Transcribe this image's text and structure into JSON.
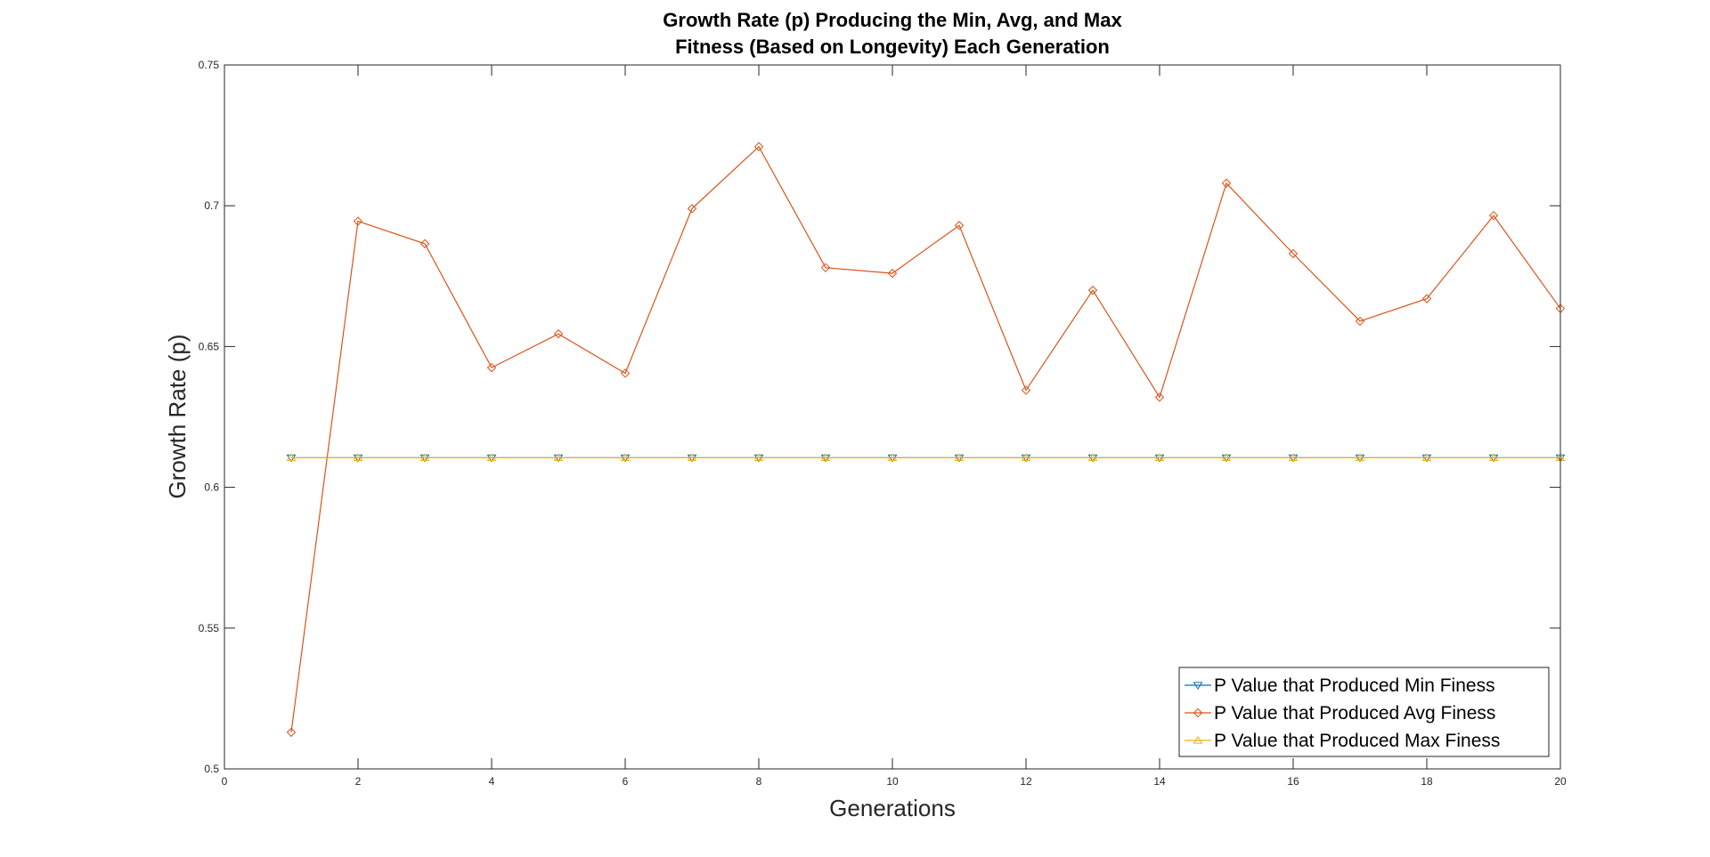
{
  "chart_data": {
    "type": "line",
    "title_lines": [
      "Growth Rate (p) Producing the Min, Avg, and Max",
      "Fitness (Based on Longevity) Each Generation"
    ],
    "xlabel": "Generations",
    "ylabel": "Growth Rate (p)",
    "xlim": [
      0,
      20
    ],
    "ylim": [
      0.5,
      0.75
    ],
    "x_ticks": [
      0,
      2,
      4,
      6,
      8,
      10,
      12,
      14,
      16,
      18,
      20
    ],
    "y_ticks": [
      0.5,
      0.55,
      0.6,
      0.65,
      0.7,
      0.75
    ],
    "x_tick_labels": [
      "0",
      "2",
      "4",
      "6",
      "8",
      "10",
      "12",
      "14",
      "16",
      "18",
      "20"
    ],
    "y_tick_labels": [
      "0.5",
      "0.55",
      "0.6",
      "0.65",
      "0.7",
      "0.75"
    ],
    "grid": false,
    "legend_position": "bottom-right",
    "x": [
      1,
      2,
      3,
      4,
      5,
      6,
      7,
      8,
      9,
      10,
      11,
      12,
      13,
      14,
      15,
      16,
      17,
      18,
      19,
      20
    ],
    "series": [
      {
        "name": "P Value that Produced Min Finess",
        "color": "#0072BD",
        "marker": "triangle-down",
        "values": [
          0.6105,
          0.6105,
          0.6105,
          0.6105,
          0.6105,
          0.6105,
          0.6105,
          0.6105,
          0.6105,
          0.6105,
          0.6105,
          0.6105,
          0.6105,
          0.6105,
          0.6105,
          0.6105,
          0.6105,
          0.6105,
          0.6105,
          0.6105
        ]
      },
      {
        "name": "P Value that Produced Avg Finess",
        "color": "#D95319",
        "marker": "diamond",
        "values": [
          0.513,
          0.6945,
          0.6865,
          0.6425,
          0.6545,
          0.6405,
          0.699,
          0.721,
          0.678,
          0.676,
          0.693,
          0.6345,
          0.67,
          0.632,
          0.708,
          0.683,
          0.659,
          0.667,
          0.6965,
          0.6635
        ]
      },
      {
        "name": "P Value that Produced Max Finess",
        "color": "#EDB120",
        "marker": "triangle-up",
        "values": [
          0.6105,
          0.6105,
          0.6105,
          0.6105,
          0.6105,
          0.6105,
          0.6105,
          0.6105,
          0.6105,
          0.6105,
          0.6105,
          0.6105,
          0.6105,
          0.6105,
          0.6105,
          0.6105,
          0.6105,
          0.6105,
          0.6105,
          0.6105
        ]
      }
    ]
  }
}
